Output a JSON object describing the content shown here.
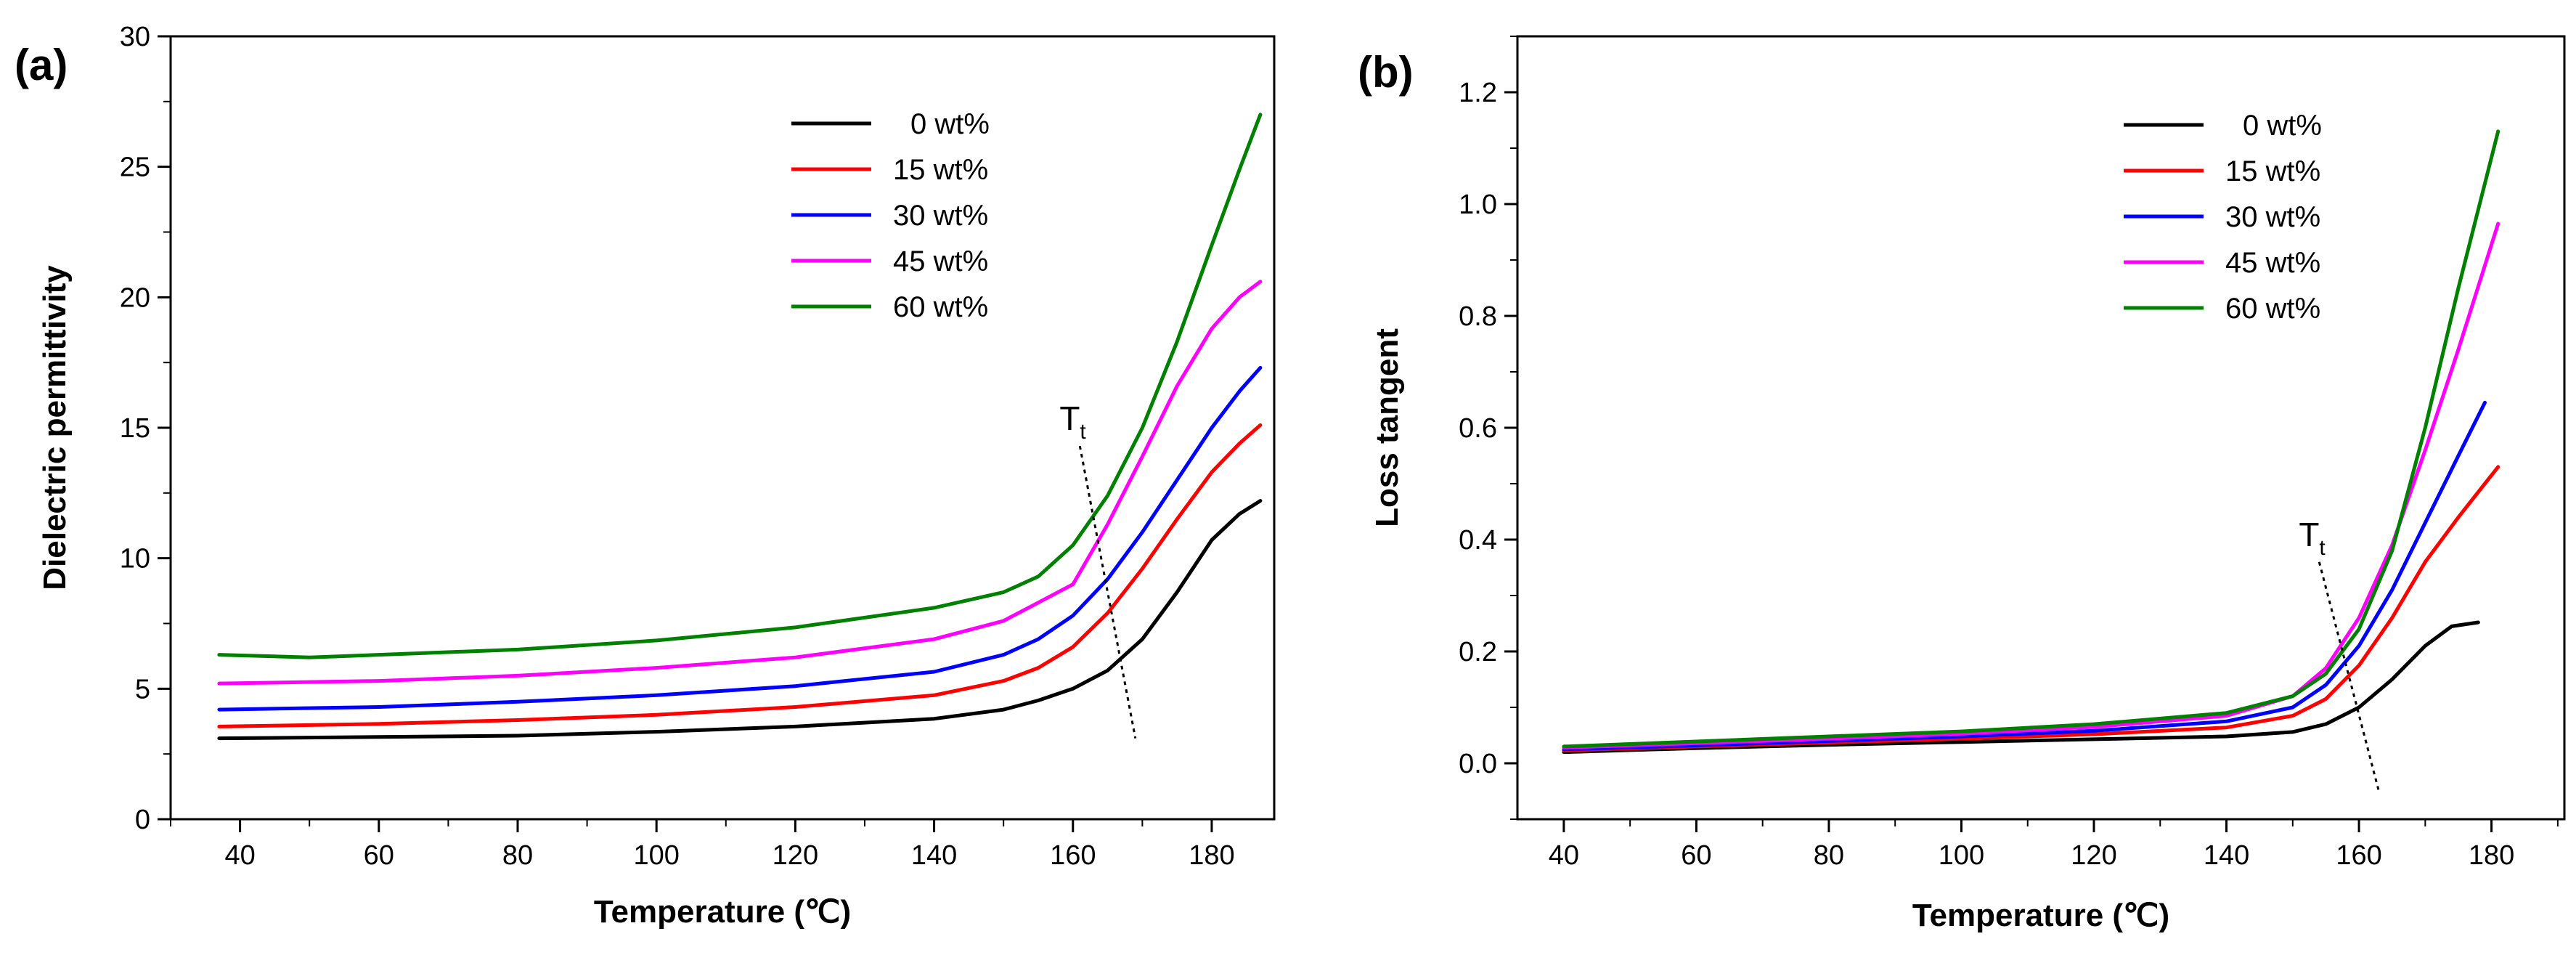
{
  "chart_data": [
    {
      "type": "line",
      "panel_label": "(a)",
      "xlabel": "Temperature (℃)",
      "ylabel": "Dielectric permittivity",
      "xlim": [
        30,
        189
      ],
      "ylim": [
        0,
        30
      ],
      "xticks": [
        40,
        60,
        80,
        100,
        120,
        140,
        160,
        180
      ],
      "yticks": [
        0,
        5,
        10,
        15,
        20,
        25,
        30
      ],
      "legend_position": "top-right",
      "annotation": {
        "text": "T",
        "subscript": "t",
        "line": [
          [
            161,
            14.3
          ],
          [
            169,
            3.1
          ]
        ]
      },
      "series": [
        {
          "name": "0 wt%",
          "color": "#000000",
          "x": [
            37,
            60,
            80,
            100,
            120,
            140,
            150,
            155,
            160,
            165,
            170,
            175,
            180,
            184,
            187
          ],
          "y": [
            3.1,
            3.15,
            3.2,
            3.35,
            3.55,
            3.85,
            4.2,
            4.55,
            5.0,
            5.7,
            6.9,
            8.7,
            10.7,
            11.7,
            12.2
          ]
        },
        {
          "name": "15 wt%",
          "color": "#ff0000",
          "x": [
            37,
            60,
            80,
            100,
            120,
            140,
            150,
            155,
            160,
            165,
            170,
            175,
            180,
            184,
            187
          ],
          "y": [
            3.55,
            3.65,
            3.8,
            4.0,
            4.3,
            4.75,
            5.3,
            5.8,
            6.6,
            7.9,
            9.6,
            11.5,
            13.3,
            14.4,
            15.1
          ]
        },
        {
          "name": "30 wt%",
          "color": "#0000ff",
          "x": [
            37,
            60,
            80,
            100,
            120,
            140,
            150,
            155,
            160,
            165,
            170,
            175,
            180,
            184,
            187
          ],
          "y": [
            4.2,
            4.3,
            4.5,
            4.75,
            5.1,
            5.65,
            6.3,
            6.9,
            7.8,
            9.2,
            11.0,
            13.0,
            15.0,
            16.4,
            17.3
          ]
        },
        {
          "name": "45 wt%",
          "color": "#ff00ff",
          "x": [
            37,
            60,
            80,
            100,
            120,
            140,
            150,
            155,
            160,
            165,
            170,
            175,
            180,
            184,
            187
          ],
          "y": [
            5.2,
            5.3,
            5.5,
            5.8,
            6.2,
            6.9,
            7.6,
            8.3,
            9.0,
            11.3,
            13.9,
            16.6,
            18.8,
            20.0,
            20.6
          ]
        },
        {
          "name": "60 wt%",
          "color": "#008000",
          "x": [
            37,
            50,
            60,
            80,
            100,
            120,
            140,
            150,
            155,
            160,
            165,
            170,
            175,
            180,
            184,
            187
          ],
          "y": [
            6.3,
            6.2,
            6.3,
            6.5,
            6.85,
            7.35,
            8.1,
            8.7,
            9.3,
            10.5,
            12.4,
            15.0,
            18.3,
            22.0,
            24.9,
            27.0
          ]
        }
      ]
    },
    {
      "type": "line",
      "panel_label": "(b)",
      "xlabel": "Temperature (℃)",
      "ylabel": "Loss tangent",
      "xlim": [
        33,
        191
      ],
      "ylim": [
        -0.1,
        1.3
      ],
      "xticks": [
        40,
        60,
        80,
        100,
        120,
        140,
        160,
        180
      ],
      "yticks": [
        0.0,
        0.2,
        0.4,
        0.6,
        0.8,
        1.0,
        1.2
      ],
      "ytick_labels": [
        "0.0",
        "0.2",
        "0.4",
        "0.6",
        "0.8",
        "1.0",
        "1.2"
      ],
      "legend_position": "top-right",
      "annotation": {
        "text": "T",
        "subscript": "t",
        "line": [
          [
            154,
            0.36
          ],
          [
            163,
            -0.05
          ]
        ]
      },
      "series": [
        {
          "name": "0 wt%",
          "color": "#000000",
          "x": [
            40,
            60,
            80,
            100,
            120,
            140,
            150,
            155,
            160,
            165,
            170,
            174,
            178
          ],
          "y": [
            0.02,
            0.027,
            0.033,
            0.038,
            0.043,
            0.048,
            0.056,
            0.07,
            0.1,
            0.15,
            0.21,
            0.245,
            0.252
          ]
        },
        {
          "name": "15 wt%",
          "color": "#ff0000",
          "x": [
            40,
            60,
            80,
            100,
            120,
            140,
            150,
            155,
            160,
            165,
            170,
            175,
            181
          ],
          "y": [
            0.023,
            0.03,
            0.037,
            0.044,
            0.052,
            0.064,
            0.085,
            0.115,
            0.175,
            0.26,
            0.36,
            0.44,
            0.53
          ]
        },
        {
          "name": "30 wt%",
          "color": "#0000ff",
          "x": [
            40,
            60,
            80,
            100,
            120,
            140,
            150,
            155,
            160,
            165,
            170,
            175,
            179
          ],
          "y": [
            0.025,
            0.032,
            0.04,
            0.048,
            0.058,
            0.075,
            0.1,
            0.14,
            0.21,
            0.31,
            0.43,
            0.55,
            0.645
          ]
        },
        {
          "name": "45 wt%",
          "color": "#ff00ff",
          "x": [
            40,
            60,
            80,
            100,
            120,
            140,
            150,
            155,
            160,
            165,
            170,
            175,
            181
          ],
          "y": [
            0.028,
            0.036,
            0.044,
            0.053,
            0.065,
            0.085,
            0.12,
            0.17,
            0.26,
            0.39,
            0.56,
            0.74,
            0.965
          ]
        },
        {
          "name": "60 wt%",
          "color": "#008000",
          "x": [
            40,
            60,
            80,
            100,
            120,
            140,
            150,
            155,
            160,
            165,
            170,
            175,
            181
          ],
          "y": [
            0.03,
            0.039,
            0.048,
            0.057,
            0.07,
            0.09,
            0.12,
            0.16,
            0.24,
            0.38,
            0.6,
            0.85,
            1.13
          ]
        }
      ]
    }
  ]
}
